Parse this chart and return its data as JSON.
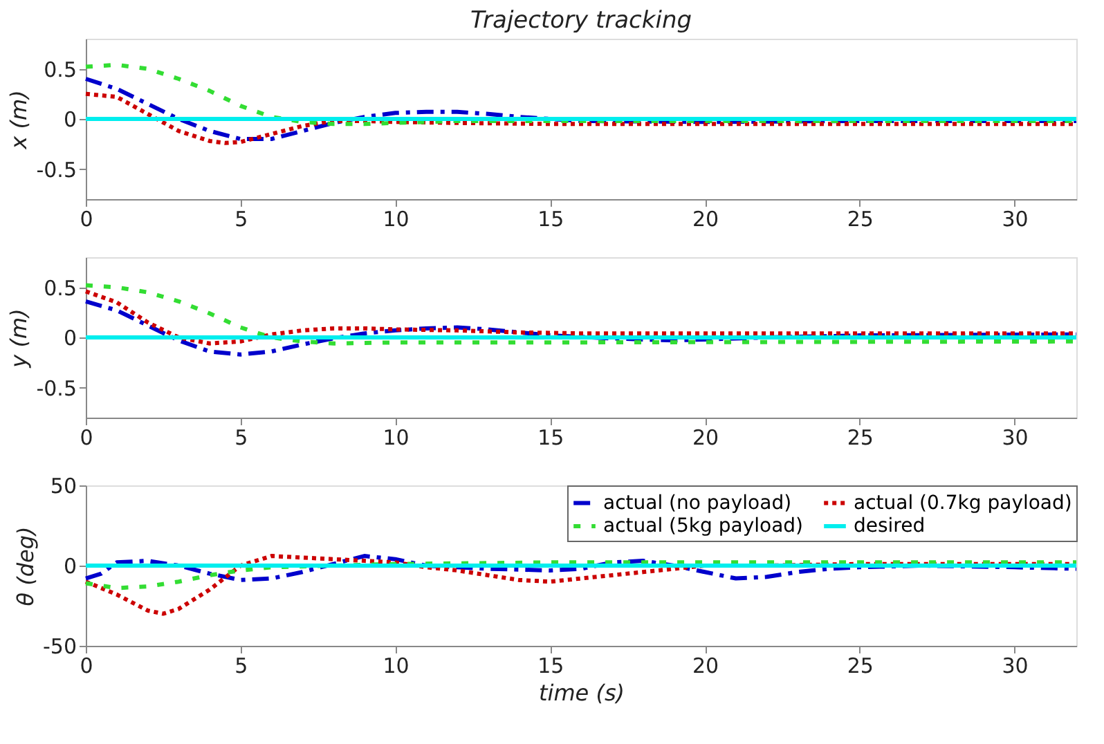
{
  "chart_data": [
    {
      "type": "line",
      "title": "Trajectory tracking",
      "ylabel": "x (m)",
      "xlim": [
        0,
        32
      ],
      "xticks": [
        0,
        5,
        10,
        15,
        20,
        25,
        30
      ],
      "ylim": [
        -0.8,
        0.8
      ],
      "yticks": [
        -0.5,
        0,
        0.5
      ],
      "grid": false,
      "legend": false,
      "series": [
        {
          "color": "#0000cc",
          "line_style": "dashed",
          "x": [
            0,
            1,
            2,
            3,
            4,
            5,
            6,
            7,
            8,
            9,
            10,
            11,
            12,
            13,
            14,
            15,
            16,
            20,
            25,
            32
          ],
          "values": [
            0.4,
            0.3,
            0.15,
            0,
            -0.12,
            -0.2,
            -0.2,
            -0.12,
            -0.04,
            0.02,
            0.06,
            0.07,
            0.07,
            0.05,
            0.02,
            0,
            -0.02,
            -0.03,
            -0.02,
            -0.02
          ]
        },
        {
          "color": "#cc0000",
          "line_style": "dotted",
          "x": [
            0,
            1,
            2,
            3,
            4,
            4.5,
            5,
            6,
            7,
            8,
            9,
            10,
            12,
            15,
            20,
            32
          ],
          "values": [
            0.25,
            0.22,
            0.05,
            -0.12,
            -0.22,
            -0.24,
            -0.23,
            -0.15,
            -0.07,
            -0.02,
            -0.02,
            -0.03,
            -0.04,
            -0.05,
            -0.05,
            -0.05
          ]
        },
        {
          "color": "#33dd33",
          "line_style": "dotted",
          "x": [
            0,
            1,
            2,
            3,
            4,
            5,
            6,
            7,
            8,
            9,
            10,
            12,
            15,
            32
          ],
          "values": [
            0.52,
            0.54,
            0.5,
            0.4,
            0.28,
            0.13,
            0.02,
            -0.03,
            -0.05,
            -0.05,
            -0.04,
            -0.02,
            -0.02,
            -0.02
          ]
        },
        {
          "color": "#00eeee",
          "line_style": "solid",
          "x": [
            0,
            32
          ],
          "values": [
            0,
            0
          ]
        }
      ]
    },
    {
      "type": "line",
      "ylabel": "y (m)",
      "xlim": [
        0,
        32
      ],
      "xticks": [
        0,
        5,
        10,
        15,
        20,
        25,
        30
      ],
      "ylim": [
        -0.8,
        0.8
      ],
      "yticks": [
        -0.5,
        0,
        0.5
      ],
      "grid": false,
      "legend": false,
      "series": [
        {
          "color": "#0000cc",
          "line_style": "dashed",
          "x": [
            0,
            1,
            2,
            3,
            4,
            5,
            6,
            7,
            8,
            9,
            10,
            11,
            12,
            13,
            14,
            15,
            17,
            19,
            20,
            22,
            25,
            32
          ],
          "values": [
            0.36,
            0.27,
            0.12,
            -0.03,
            -0.14,
            -0.17,
            -0.14,
            -0.07,
            -0.01,
            0.04,
            0.07,
            0.09,
            0.1,
            0.08,
            0.05,
            0.02,
            -0.01,
            -0.03,
            -0.02,
            0,
            0.02,
            0.03
          ]
        },
        {
          "color": "#cc0000",
          "line_style": "dotted",
          "x": [
            0,
            1,
            2,
            3,
            4,
            5,
            6,
            7,
            8,
            9,
            10,
            12,
            14,
            16,
            32
          ],
          "values": [
            0.46,
            0.35,
            0.15,
            0,
            -0.06,
            -0.04,
            0.03,
            0.07,
            0.09,
            0.09,
            0.08,
            0.07,
            0.05,
            0.04,
            0.04
          ]
        },
        {
          "color": "#33dd33",
          "line_style": "dotted",
          "x": [
            0,
            1,
            2,
            3,
            4,
            5,
            6,
            7,
            8,
            10,
            15,
            32
          ],
          "values": [
            0.52,
            0.5,
            0.45,
            0.36,
            0.24,
            0.1,
            0,
            -0.04,
            -0.06,
            -0.05,
            -0.05,
            -0.04
          ]
        },
        {
          "color": "#00eeee",
          "line_style": "solid",
          "x": [
            0,
            32
          ],
          "values": [
            0,
            0
          ]
        }
      ]
    },
    {
      "type": "line",
      "xlabel": "time (s)",
      "ylabel": "θ (deg)",
      "xlim": [
        0,
        32
      ],
      "xticks": [
        0,
        5,
        10,
        15,
        20,
        25,
        30
      ],
      "ylim": [
        -50,
        50
      ],
      "yticks": [
        -50,
        0,
        50
      ],
      "grid": false,
      "legend": "top right",
      "series": [
        {
          "name": "actual (no payload)",
          "color": "#0000cc",
          "line_style": "dashed",
          "x": [
            0,
            0.5,
            1,
            2,
            3,
            4,
            5,
            6,
            7,
            8,
            9,
            10,
            11,
            13,
            15,
            16,
            17,
            18,
            19,
            20,
            21,
            22,
            23,
            24,
            25,
            27,
            30,
            32
          ],
          "values": [
            -8,
            -5,
            2,
            3,
            0,
            -5,
            -9,
            -8,
            -4,
            1,
            6,
            4,
            0,
            -2,
            -3,
            -2,
            2,
            3,
            0,
            -4,
            -8,
            -7,
            -4,
            -2,
            -1,
            0,
            -1,
            -2
          ]
        },
        {
          "name": "actual (0.7kg payload)",
          "color": "#cc0000",
          "line_style": "dotted",
          "x": [
            0,
            1,
            2,
            2.5,
            3,
            4,
            5,
            6,
            7,
            8,
            9,
            10,
            11,
            12,
            13,
            14,
            15,
            16,
            17,
            18,
            19,
            20,
            22,
            25,
            32
          ],
          "values": [
            -10,
            -18,
            -28,
            -30,
            -27,
            -15,
            0,
            6,
            5,
            4,
            3,
            2,
            -1,
            -3,
            -6,
            -9,
            -10,
            -8,
            -6,
            -4,
            -2,
            0,
            0,
            1,
            1
          ]
        },
        {
          "name": "actual (5kg payload)",
          "color": "#33dd33",
          "line_style": "dotted",
          "x": [
            0,
            1,
            2,
            3,
            4,
            5,
            6,
            8,
            10,
            15,
            20,
            32
          ],
          "values": [
            -11,
            -14,
            -13,
            -10,
            -6,
            -3,
            -1,
            0,
            1,
            2,
            2,
            2
          ]
        },
        {
          "name": "desired",
          "color": "#00eeee",
          "line_style": "solid",
          "x": [
            0,
            32
          ],
          "values": [
            0,
            0
          ]
        }
      ]
    }
  ]
}
